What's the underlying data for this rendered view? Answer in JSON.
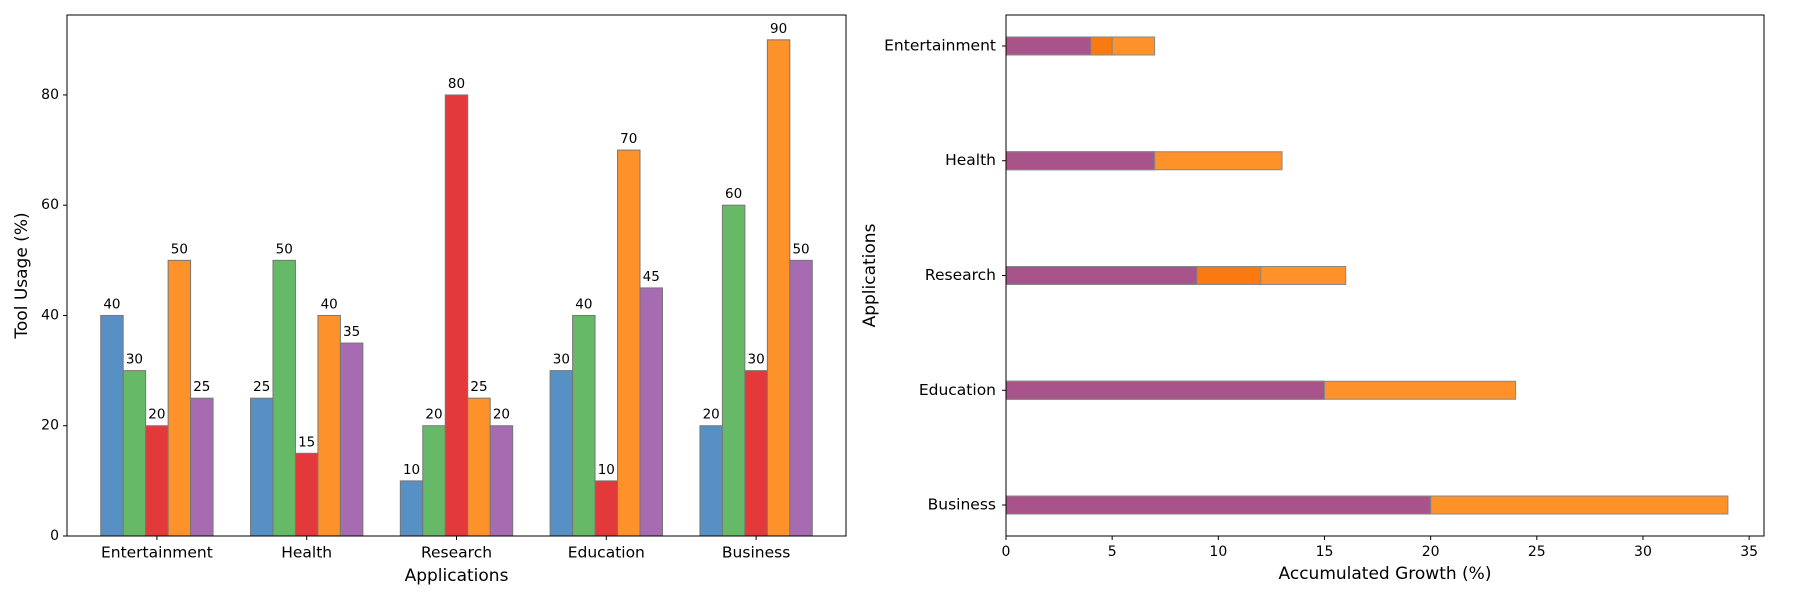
{
  "chart_data": [
    {
      "type": "bar",
      "orientation": "vertical",
      "xlabel": "Applications",
      "ylabel": "Tool Usage (%)",
      "categories": [
        "Entertainment",
        "Health",
        "Research",
        "Education",
        "Business"
      ],
      "series": [
        {
          "color": "#5790c4",
          "values": [
            40,
            25,
            10,
            30,
            20
          ]
        },
        {
          "color": "#66b966",
          "values": [
            30,
            50,
            20,
            40,
            60
          ]
        },
        {
          "color": "#e3393b",
          "values": [
            20,
            15,
            80,
            10,
            30
          ]
        },
        {
          "color": "#fd912a",
          "values": [
            50,
            40,
            25,
            70,
            90
          ]
        },
        {
          "color": "#a66bb0",
          "values": [
            25,
            35,
            20,
            45,
            50
          ]
        }
      ],
      "ylim": [
        0,
        94.5
      ],
      "yticks": [
        0,
        20,
        40,
        60,
        80
      ],
      "data_labels": true
    },
    {
      "type": "bar",
      "orientation": "horizontal",
      "overlap": true,
      "xlabel": "Accumulated Growth (%)",
      "ylabel": "Applications",
      "categories": [
        "Entertainment",
        "Health",
        "Research",
        "Education",
        "Business"
      ],
      "series": [
        {
          "color": "#fd912a",
          "values": [
            7,
            13,
            16,
            24,
            34
          ]
        },
        {
          "color": "#f97a10",
          "values": [
            5,
            7,
            12,
            15,
            20
          ]
        },
        {
          "color": "#a8548a",
          "values": [
            4,
            7,
            9,
            15,
            20
          ]
        }
      ],
      "xlim": [
        0,
        35.7
      ],
      "xticks": [
        0,
        5,
        10,
        15,
        20,
        25,
        30,
        35
      ],
      "data_labels": false
    }
  ]
}
